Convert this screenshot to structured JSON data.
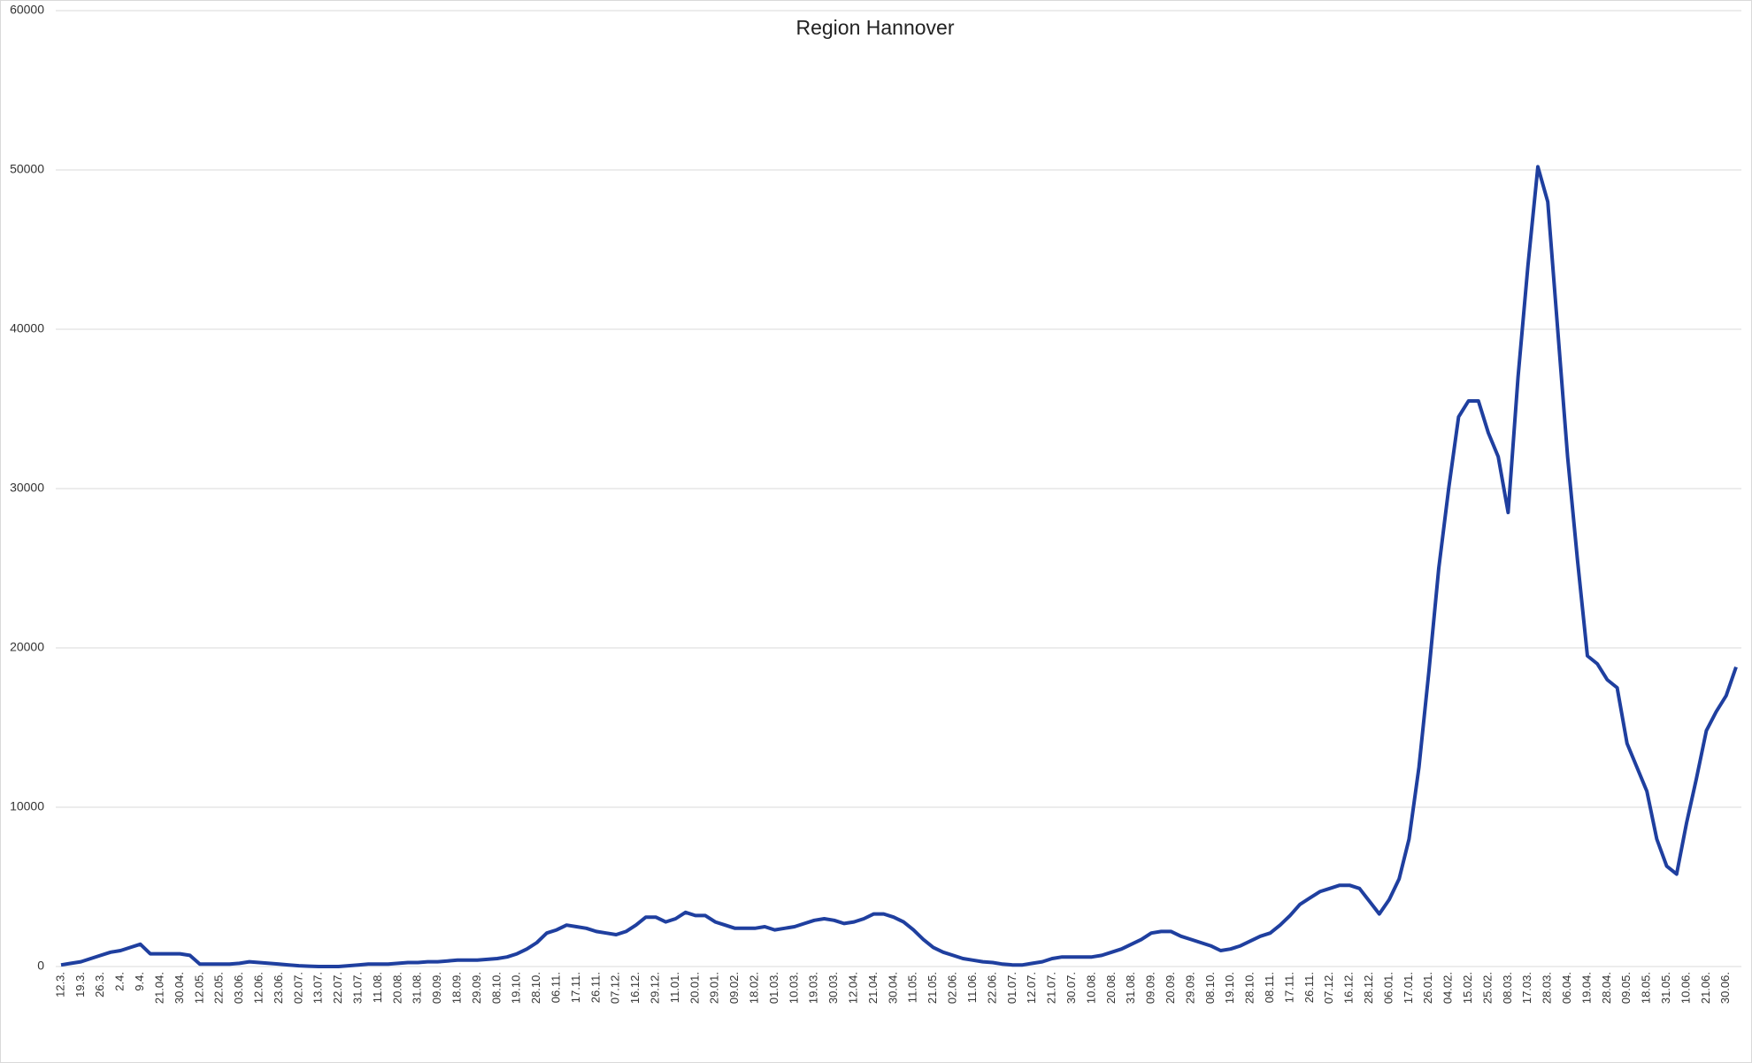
{
  "chart_data": {
    "type": "line",
    "title": "Region Hannover",
    "categories": [
      "12.3.",
      null,
      "19.3.",
      null,
      "26.3.",
      null,
      "2.4.",
      null,
      "9.4.",
      null,
      "21.04.",
      null,
      "30.04.",
      null,
      "12.05.",
      null,
      "22.05.",
      null,
      "03.06.",
      null,
      "12.06.",
      null,
      "23.06.",
      null,
      "02.07.",
      null,
      "13.07.",
      null,
      "22.07.",
      null,
      "31.07.",
      null,
      "11.08.",
      null,
      "20.08.",
      null,
      "31.08.",
      null,
      "09.09.",
      null,
      "18.09.",
      null,
      "29.09.",
      null,
      "08.10.",
      null,
      "19.10.",
      null,
      "28.10.",
      null,
      "06.11.",
      null,
      "17.11.",
      null,
      "26.11.",
      null,
      "07.12.",
      null,
      "16.12.",
      null,
      "29.12.",
      null,
      "11.01.",
      null,
      "20.01.",
      null,
      "29.01.",
      null,
      "09.02.",
      null,
      "18.02.",
      null,
      "01.03.",
      null,
      "10.03.",
      null,
      "19.03.",
      null,
      "30.03.",
      null,
      "12.04.",
      null,
      "21.04.",
      null,
      "30.04.",
      null,
      "11.05.",
      null,
      "21.05.",
      null,
      "02.06.",
      null,
      "11.06.",
      null,
      "22.06.",
      null,
      "01.07.",
      null,
      "12.07.",
      null,
      "21.07.",
      null,
      "30.07.",
      null,
      "10.08.",
      null,
      "20.08.",
      null,
      "31.08.",
      null,
      "09.09.",
      null,
      "20.09.",
      null,
      "29.09.",
      null,
      "08.10.",
      null,
      "19.10.",
      null,
      "28.10.",
      null,
      "08.11.",
      null,
      "17.11.",
      null,
      "26.11.",
      null,
      "07.12.",
      null,
      "16.12.",
      null,
      "28.12.",
      null,
      "06.01.",
      null,
      "17.01.",
      null,
      "26.01.",
      null,
      "04.02.",
      null,
      "15.02.",
      null,
      "25.02.",
      null,
      "08.03.",
      null,
      "17.03.",
      null,
      "28.03.",
      null,
      "06.04.",
      null,
      "19.04.",
      null,
      "28.04.",
      null,
      "09.05.",
      null,
      "18.05.",
      null,
      "31.05.",
      null,
      "10.06.",
      null,
      "21.06.",
      null,
      "30.06.",
      null
    ],
    "series": [
      {
        "color": "#1f3f9f",
        "values": [
          100,
          200,
          300,
          500,
          700,
          900,
          1000,
          1200,
          1400,
          800,
          800,
          800,
          800,
          700,
          150,
          150,
          150,
          150,
          200,
          300,
          250,
          200,
          150,
          100,
          50,
          20,
          0,
          0,
          0,
          50,
          100,
          150,
          150,
          150,
          200,
          250,
          250,
          300,
          300,
          350,
          400,
          400,
          400,
          450,
          500,
          600,
          800,
          1100,
          1500,
          2100,
          2300,
          2600,
          2500,
          2400,
          2200,
          2100,
          2000,
          2200,
          2600,
          3100,
          3100,
          2800,
          3000,
          3400,
          3200,
          3200,
          2800,
          2600,
          2400,
          2400,
          2400,
          2500,
          2300,
          2400,
          2500,
          2700,
          2900,
          3000,
          2900,
          2700,
          2800,
          3000,
          3300,
          3300,
          3100,
          2800,
          2300,
          1700,
          1200,
          900,
          700,
          500,
          400,
          300,
          250,
          150,
          100,
          100,
          200,
          300,
          500,
          600,
          600,
          600,
          600,
          700,
          900,
          1100,
          1400,
          1700,
          2100,
          2200,
          2200,
          1900,
          1700,
          1500,
          1300,
          1000,
          1100,
          1300,
          1600,
          1900,
          2100,
          2600,
          3200,
          3900,
          4300,
          4700,
          4900,
          5100,
          5100,
          4900,
          4100,
          3300,
          4200,
          5500,
          8000,
          12500,
          18500,
          25000,
          30000,
          34500,
          35500,
          35500,
          33500,
          32000,
          28500,
          37000,
          44000,
          50200,
          48000,
          40000,
          32000,
          25500,
          19500,
          19000,
          18000,
          17500,
          14000,
          12500,
          11000,
          8000,
          6300,
          5800,
          9000,
          11800,
          14800,
          16000,
          17000,
          18800
        ]
      }
    ],
    "ylim": [
      0,
      60000
    ],
    "yticks": [
      0,
      10000,
      20000,
      30000,
      40000,
      50000,
      60000
    ],
    "grid": true
  }
}
